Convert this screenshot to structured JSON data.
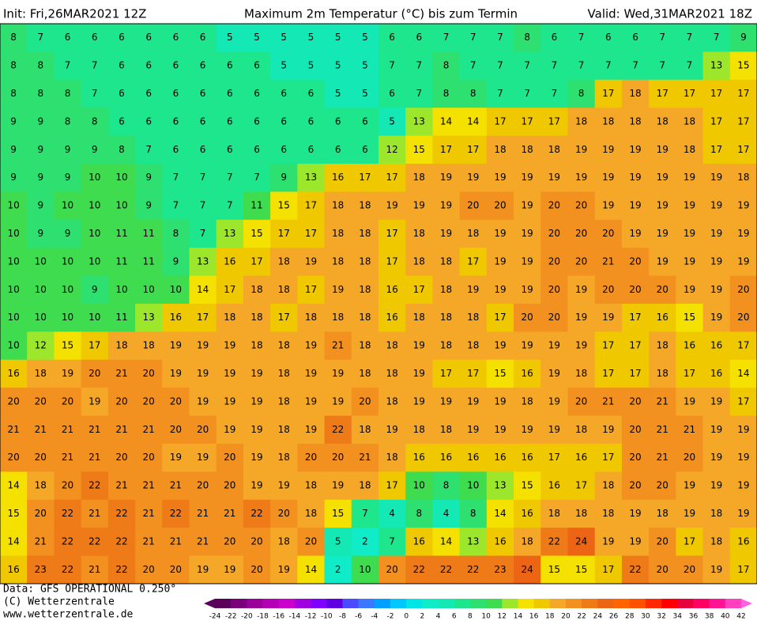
{
  "header": {
    "init": "Init: Fri,26MAR2021 12Z",
    "title": "Maximum 2m Temperatur (°C) bis zum Termin",
    "valid": "Valid: Wed,31MAR2021 18Z"
  },
  "footer": {
    "data": "Data: GFS OPERATIONAL 0.250°",
    "copyright": "(C) Wetterzentrale",
    "url": "www.wetterzentrale.de"
  },
  "colorbar": {
    "levels": [
      -24,
      -22,
      -20,
      -18,
      -16,
      -14,
      -12,
      -10,
      -8,
      -6,
      -4,
      -2,
      0,
      2,
      4,
      6,
      8,
      10,
      12,
      14,
      16,
      18,
      20,
      22,
      24,
      26,
      28,
      30,
      32,
      34,
      36,
      38,
      40,
      42
    ],
    "colors": [
      "#5a005a",
      "#7a007a",
      "#9a009a",
      "#b400b4",
      "#cc00cc",
      "#a000e0",
      "#8000ff",
      "#6000e0",
      "#4a4aff",
      "#3c78ff",
      "#00a0ff",
      "#00c8ff",
      "#00e6e6",
      "#10ecc8",
      "#14e8b4",
      "#1ee68c",
      "#2ee070",
      "#40dc50",
      "#9ce62c",
      "#f5e100",
      "#f0c800",
      "#f5a828",
      "#f29020",
      "#ee7a18",
      "#ec6414",
      "#ff6400",
      "#ff5000",
      "#ff2800",
      "#ff0000",
      "#e6003c",
      "#ff0064",
      "#ff1493",
      "#ff40c0",
      "#ff60e0"
    ]
  },
  "grid": [
    [
      8,
      7,
      6,
      6,
      6,
      6,
      6,
      6,
      5,
      5,
      5,
      5,
      5,
      5,
      6,
      6,
      7,
      7,
      7,
      8,
      6,
      7,
      6,
      6,
      7,
      7,
      7,
      9
    ],
    [
      8,
      8,
      7,
      7,
      6,
      6,
      6,
      6,
      6,
      6,
      5,
      5,
      5,
      5,
      7,
      7,
      8,
      7,
      7,
      7,
      7,
      7,
      7,
      7,
      7,
      7,
      13,
      15
    ],
    [
      8,
      8,
      8,
      7,
      6,
      6,
      6,
      6,
      6,
      6,
      6,
      6,
      5,
      5,
      6,
      7,
      8,
      8,
      7,
      7,
      7,
      8,
      17,
      18,
      17,
      17,
      17,
      17
    ],
    [
      9,
      9,
      8,
      8,
      6,
      6,
      6,
      6,
      6,
      6,
      6,
      6,
      6,
      6,
      5,
      13,
      14,
      14,
      17,
      17,
      17,
      18,
      18,
      18,
      18,
      18,
      17,
      17
    ],
    [
      9,
      9,
      9,
      9,
      8,
      7,
      6,
      6,
      6,
      6,
      6,
      6,
      6,
      6,
      12,
      15,
      17,
      17,
      18,
      18,
      18,
      19,
      19,
      19,
      19,
      18,
      17,
      17
    ],
    [
      9,
      9,
      9,
      10,
      10,
      9,
      7,
      7,
      7,
      7,
      9,
      13,
      16,
      17,
      17,
      18,
      19,
      19,
      19,
      19,
      19,
      19,
      19,
      19,
      19,
      19,
      19,
      18
    ],
    [
      10,
      9,
      10,
      10,
      10,
      9,
      7,
      7,
      7,
      11,
      15,
      17,
      18,
      18,
      19,
      19,
      19,
      20,
      20,
      19,
      20,
      20,
      19,
      19,
      19,
      19,
      19,
      19
    ],
    [
      10,
      9,
      9,
      10,
      11,
      11,
      8,
      7,
      13,
      15,
      17,
      17,
      18,
      18,
      17,
      18,
      19,
      18,
      19,
      19,
      20,
      20,
      20,
      19,
      19,
      19,
      19,
      19
    ],
    [
      10,
      10,
      10,
      10,
      11,
      11,
      9,
      13,
      16,
      17,
      18,
      19,
      18,
      18,
      17,
      18,
      18,
      17,
      19,
      19,
      20,
      20,
      21,
      20,
      19,
      19,
      19,
      19
    ],
    [
      10,
      10,
      10,
      9,
      10,
      10,
      10,
      14,
      17,
      18,
      18,
      17,
      19,
      18,
      16,
      17,
      18,
      19,
      19,
      19,
      20,
      19,
      20,
      20,
      20,
      19,
      19,
      20
    ],
    [
      10,
      10,
      10,
      10,
      11,
      13,
      16,
      17,
      18,
      18,
      17,
      18,
      18,
      18,
      16,
      18,
      18,
      18,
      17,
      20,
      20,
      19,
      19,
      17,
      16,
      15,
      19,
      20
    ],
    [
      10,
      12,
      15,
      17,
      18,
      18,
      19,
      19,
      19,
      18,
      18,
      19,
      21,
      18,
      18,
      19,
      18,
      18,
      19,
      19,
      19,
      19,
      17,
      17,
      18,
      16,
      16,
      17
    ],
    [
      16,
      18,
      19,
      20,
      21,
      20,
      19,
      19,
      19,
      19,
      18,
      19,
      19,
      18,
      18,
      19,
      17,
      17,
      15,
      16,
      19,
      18,
      17,
      17,
      18,
      17,
      16,
      14
    ],
    [
      20,
      20,
      20,
      19,
      20,
      20,
      20,
      19,
      19,
      19,
      18,
      19,
      19,
      20,
      18,
      19,
      19,
      19,
      19,
      18,
      19,
      20,
      21,
      20,
      21,
      19,
      19,
      17
    ],
    [
      21,
      21,
      21,
      21,
      21,
      21,
      20,
      20,
      19,
      19,
      18,
      19,
      22,
      18,
      19,
      18,
      18,
      19,
      19,
      19,
      19,
      18,
      19,
      20,
      21,
      21,
      19,
      19
    ],
    [
      20,
      20,
      21,
      21,
      20,
      20,
      19,
      19,
      20,
      19,
      18,
      20,
      20,
      21,
      18,
      16,
      16,
      16,
      16,
      16,
      17,
      16,
      17,
      20,
      21,
      20,
      19,
      19
    ],
    [
      14,
      18,
      20,
      22,
      21,
      21,
      21,
      20,
      20,
      19,
      19,
      18,
      19,
      18,
      17,
      10,
      8,
      10,
      13,
      15,
      16,
      17,
      18,
      20,
      20,
      19,
      19,
      19
    ],
    [
      15,
      20,
      22,
      21,
      22,
      21,
      22,
      21,
      21,
      22,
      20,
      18,
      15,
      7,
      4,
      8,
      4,
      8,
      14,
      16,
      18,
      18,
      18,
      19,
      18,
      19,
      18,
      19
    ],
    [
      14,
      21,
      22,
      22,
      22,
      21,
      21,
      21,
      20,
      20,
      18,
      20,
      5,
      2,
      7,
      16,
      14,
      13,
      16,
      18,
      22,
      24,
      19,
      19,
      20,
      17,
      18,
      16
    ],
    [
      16,
      23,
      22,
      21,
      22,
      20,
      20,
      19,
      19,
      20,
      19,
      14,
      2,
      10,
      20,
      22,
      22,
      22,
      23,
      24,
      15,
      15,
      17,
      22,
      20,
      20,
      19,
      17
    ]
  ]
}
